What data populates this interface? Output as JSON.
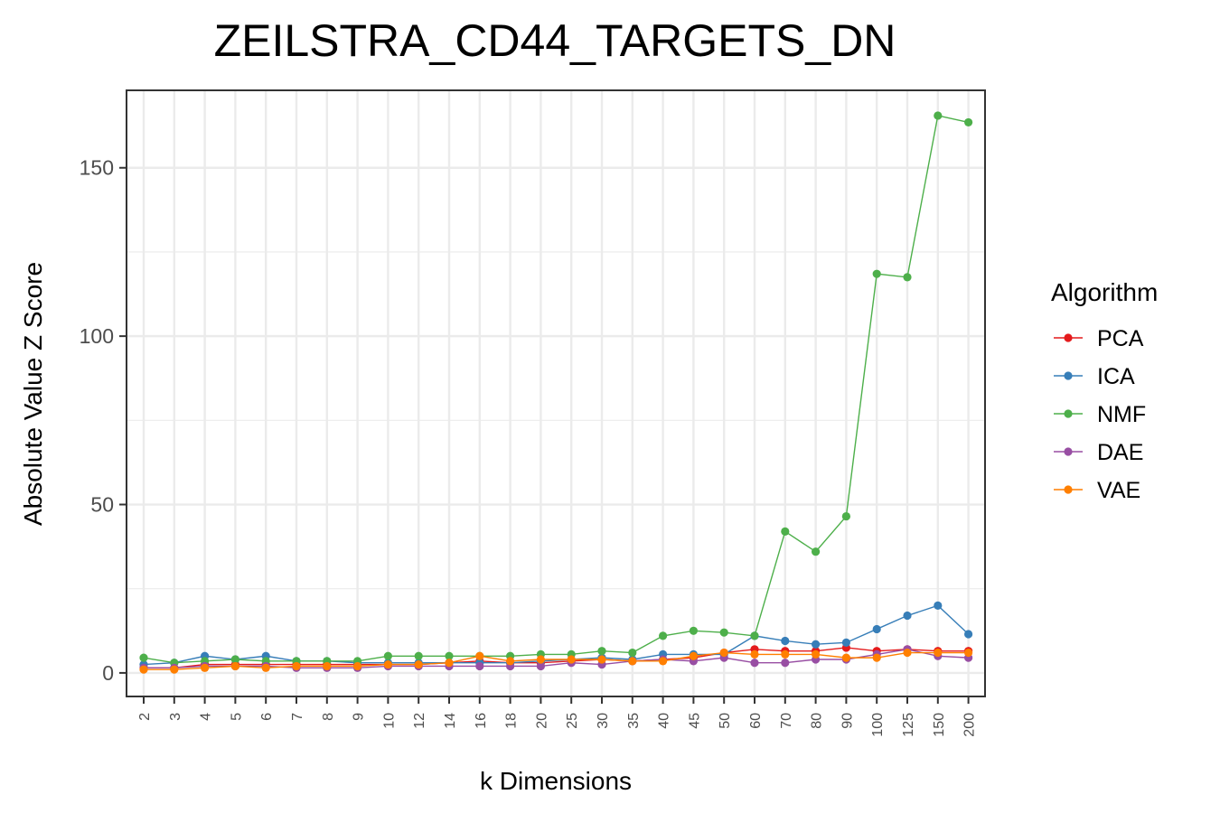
{
  "chart_data": {
    "type": "line",
    "title": "ZEILSTRA_CD44_TARGETS_DN",
    "xlabel": "k Dimensions",
    "ylabel": "Absolute Value Z Score",
    "categories": [
      "2",
      "3",
      "4",
      "5",
      "6",
      "7",
      "8",
      "9",
      "10",
      "12",
      "14",
      "16",
      "18",
      "20",
      "25",
      "30",
      "35",
      "40",
      "45",
      "50",
      "60",
      "70",
      "80",
      "90",
      "100",
      "125",
      "150",
      "200"
    ],
    "y_ticks": [
      "0",
      "50",
      "100",
      "150"
    ],
    "ylim": [
      -7,
      173
    ],
    "grid": true,
    "legend": {
      "title": "Algorithm",
      "position": "right"
    },
    "series": [
      {
        "name": "PCA",
        "color": "#e41a1c",
        "values": [
          1.5,
          1.5,
          2.5,
          2.5,
          2.5,
          2.5,
          2.5,
          2.5,
          2.5,
          2.5,
          3,
          3.5,
          3,
          3,
          3.5,
          4,
          3.5,
          4,
          4.5,
          6,
          7,
          6.5,
          6.5,
          7.5,
          6.5,
          7,
          6.5,
          6.5
        ]
      },
      {
        "name": "ICA",
        "color": "#377eb8",
        "values": [
          2.5,
          3,
          5,
          4,
          5,
          3.5,
          3.5,
          3,
          3,
          3,
          3,
          3,
          3,
          3.5,
          4,
          4.5,
          4,
          5.5,
          5.5,
          5.5,
          11,
          9.5,
          8.5,
          9,
          13,
          17,
          20,
          11.5
        ]
      },
      {
        "name": "NMF",
        "color": "#4daf4a",
        "values": [
          4.5,
          3,
          3.5,
          4,
          3.5,
          3.5,
          3.5,
          3.5,
          5,
          5,
          5,
          5,
          5,
          5.5,
          5.5,
          6.5,
          6,
          11,
          12.5,
          12,
          11,
          42,
          36,
          46.5,
          118.5,
          117.5,
          165.5,
          163.5
        ]
      },
      {
        "name": "DAE",
        "color": "#984ea3",
        "values": [
          1.5,
          1.5,
          2,
          2,
          2,
          1.5,
          1.5,
          1.5,
          2,
          2,
          2,
          2,
          2,
          2,
          3,
          2.5,
          3.5,
          4,
          3.5,
          4.5,
          3,
          3,
          4,
          4,
          5.5,
          7,
          5,
          4.5
        ]
      },
      {
        "name": "VAE",
        "color": "#ff7f00",
        "values": [
          1,
          1,
          1.5,
          2,
          1.5,
          2,
          2,
          2,
          2.5,
          2.5,
          3,
          5,
          3.5,
          4,
          4,
          4,
          3.5,
          3.5,
          5,
          6,
          5.5,
          5.5,
          5.5,
          4.5,
          4.5,
          6,
          6,
          6
        ]
      }
    ]
  }
}
